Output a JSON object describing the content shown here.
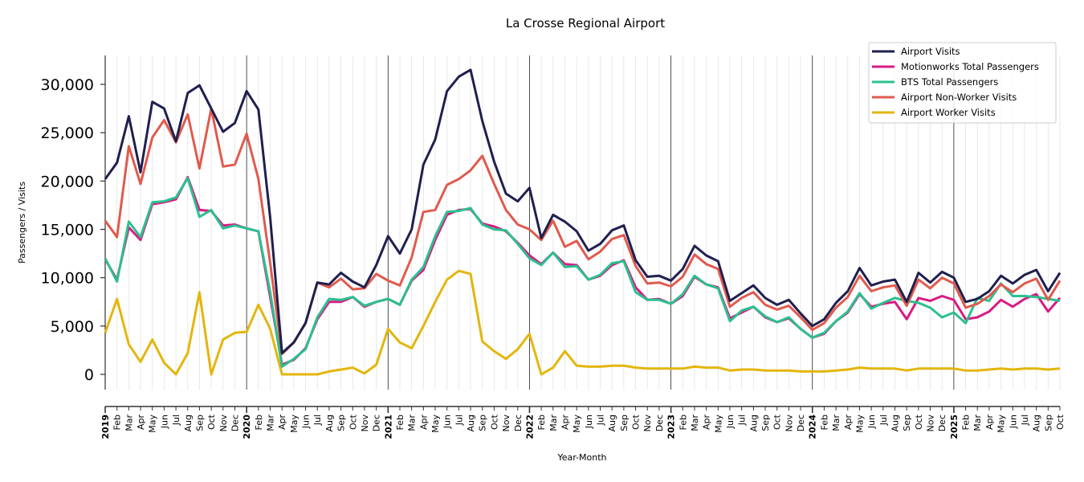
{
  "chart_data": {
    "type": "line",
    "title": "La Crosse Regional Airport",
    "xlabel": "Year-Month",
    "ylabel": "Passengers / Visits",
    "ylim": [
      -1500,
      33000
    ],
    "yticks": [
      0,
      5000,
      10000,
      15000,
      20000,
      25000,
      30000
    ],
    "ytick_labels": [
      "0",
      "5,000",
      "10,000",
      "15,000",
      "20,000",
      "25,000",
      "30,000"
    ],
    "grid": "vertical minor gridlines monthly, black vertical lines at each year start",
    "legend_position": "top-right",
    "x": [
      "2019",
      "Feb",
      "Mar",
      "Apr",
      "May",
      "Jun",
      "Jul",
      "Aug",
      "Sep",
      "Oct",
      "Nov",
      "Dec",
      "2020",
      "Feb",
      "Mar",
      "Apr",
      "May",
      "Jun",
      "Jul",
      "Aug",
      "Sep",
      "Oct",
      "Nov",
      "Dec",
      "2021",
      "Feb",
      "Mar",
      "Apr",
      "May",
      "Jun",
      "Jul",
      "Aug",
      "Sep",
      "Oct",
      "Nov",
      "Dec",
      "2022",
      "Feb",
      "Mar",
      "Apr",
      "May",
      "Jun",
      "Jul",
      "Aug",
      "Sep",
      "Oct",
      "Nov",
      "Dec",
      "2023",
      "Feb",
      "Mar",
      "Apr",
      "May",
      "Jun",
      "Jul",
      "Aug",
      "Sep",
      "Oct",
      "Nov",
      "Dec",
      "2024",
      "Feb",
      "Mar",
      "Apr",
      "May",
      "Jun",
      "Jul",
      "Aug",
      "Sep",
      "Oct",
      "Nov",
      "Dec",
      "2025",
      "Feb",
      "Mar",
      "Apr",
      "May",
      "Jun",
      "Jul",
      "Aug",
      "Sep",
      "Oct"
    ],
    "series": [
      {
        "name": "Airport Visits",
        "color": "#1f1f4f",
        "values": [
          20200,
          21900,
          26700,
          20900,
          28200,
          27500,
          24100,
          29100,
          29900,
          27500,
          25100,
          26000,
          29300,
          27400,
          16200,
          2200,
          3300,
          5300,
          9500,
          9300,
          10500,
          9600,
          9000,
          11300,
          14300,
          12500,
          15000,
          21700,
          24300,
          29300,
          30800,
          31500,
          26200,
          22000,
          18700,
          17900,
          19300,
          14100,
          16500,
          15800,
          14800,
          12800,
          13500,
          14900,
          15400,
          11800,
          10100,
          10200,
          9700,
          10900,
          13300,
          12300,
          11700,
          7600,
          8400,
          9200,
          7900,
          7200,
          7700,
          6300,
          5000,
          5700,
          7400,
          8600,
          11000,
          9200,
          9600,
          9800,
          7500,
          10500,
          9500,
          10600,
          10000,
          7500,
          7800,
          8600,
          10200,
          9400,
          10300,
          10800,
          8600,
          10500
        ]
      },
      {
        "name": "Motionworks Total Passengers",
        "color": "#d81b84",
        "values": [
          11900,
          9800,
          15200,
          13900,
          17600,
          17800,
          18100,
          20400,
          17000,
          16900,
          15400,
          15500,
          15100,
          14800,
          8000,
          1000,
          1500,
          2700,
          5700,
          7500,
          7500,
          8000,
          7000,
          7500,
          7800,
          7200,
          9700,
          10800,
          13900,
          16500,
          17000,
          17100,
          15600,
          15300,
          14800,
          13600,
          12300,
          11400,
          12600,
          11400,
          11300,
          9800,
          10200,
          11300,
          11800,
          9000,
          7700,
          7800,
          7300,
          8100,
          10100,
          9300,
          9000,
          5800,
          6400,
          7000,
          5900,
          5400,
          5800,
          4700,
          3800,
          4200,
          5500,
          6400,
          8300,
          7000,
          7300,
          7500,
          5700,
          7900,
          7600,
          8100,
          7700,
          5700,
          5900,
          6500,
          7700,
          7000,
          7800,
          8300,
          6500,
          7900
        ]
      },
      {
        "name": "BTS Total Passengers",
        "color": "#2ac08f",
        "values": [
          12000,
          9600,
          15800,
          14200,
          17800,
          17900,
          18300,
          20300,
          16300,
          17000,
          15100,
          15400,
          15100,
          14800,
          8500,
          800,
          1600,
          2600,
          5900,
          7800,
          7700,
          8000,
          7100,
          7500,
          7800,
          7200,
          9800,
          11100,
          14300,
          16800,
          16900,
          17200,
          15500,
          15000,
          14900,
          13500,
          12000,
          11300,
          12600,
          11100,
          11200,
          9800,
          10300,
          11500,
          11700,
          8500,
          7700,
          7700,
          7300,
          8300,
          10200,
          9300,
          8900,
          5500,
          6600,
          7000,
          6000,
          5400,
          5900,
          4700,
          3800,
          4300,
          5500,
          6500,
          8400,
          6800,
          7400,
          7900,
          7600,
          7400,
          6900,
          5900,
          6400,
          5300,
          7900,
          7600,
          9400,
          8100,
          8100,
          8000,
          7800,
          7600
        ]
      },
      {
        "name": "Airport Non-Worker Visits",
        "color": "#e05a4e",
        "values": [
          15900,
          14200,
          23600,
          19700,
          24500,
          26300,
          24000,
          26900,
          21300,
          27500,
          21500,
          21700,
          24900,
          20200,
          11500,
          2100,
          3300,
          5300,
          9500,
          9000,
          9900,
          8800,
          8900,
          10400,
          9700,
          9200,
          12100,
          16800,
          17000,
          19600,
          20200,
          21100,
          22600,
          19700,
          17000,
          15500,
          15000,
          13900,
          15900,
          13200,
          13800,
          11900,
          12700,
          14000,
          14400,
          11200,
          9400,
          9500,
          9100,
          10100,
          12400,
          11400,
          10900,
          7000,
          7900,
          8500,
          7200,
          6700,
          7100,
          5900,
          4600,
          5300,
          6900,
          8000,
          10200,
          8600,
          9000,
          9200,
          7100,
          9800,
          8900,
          10000,
          9400,
          6900,
          7300,
          8100,
          9300,
          8500,
          9400,
          9900,
          7700,
          9700
        ]
      },
      {
        "name": "Airport Worker Visits",
        "color": "#e3b60d",
        "values": [
          4300,
          7800,
          3100,
          1300,
          3600,
          1200,
          0,
          2200,
          8500,
          0,
          3600,
          4300,
          4400,
          7200,
          4700,
          0,
          0,
          0,
          0,
          300,
          500,
          700,
          100,
          1000,
          4700,
          3300,
          2700,
          5000,
          7500,
          9800,
          10700,
          10400,
          3400,
          2400,
          1600,
          2600,
          4200,
          0,
          700,
          2400,
          900,
          800,
          800,
          900,
          900,
          700,
          600,
          600,
          600,
          600,
          800,
          700,
          700,
          400,
          500,
          500,
          400,
          400,
          400,
          300,
          300,
          300,
          400,
          500,
          700,
          600,
          600,
          600,
          400,
          600,
          600,
          600,
          600,
          400,
          400,
          500,
          600,
          500,
          600,
          600,
          500,
          600
        ]
      }
    ]
  }
}
